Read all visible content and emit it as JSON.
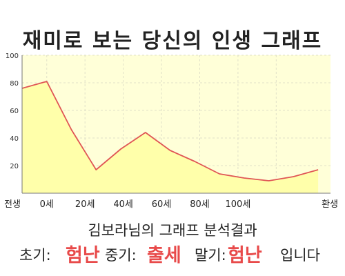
{
  "page": {
    "title": "재미로 보는 당신의 인생 그래프",
    "summary_title": "김보라님의 그래프 분석결과",
    "result": {
      "early_label": "초기:",
      "early_value": "험난",
      "middle_label": "중기:",
      "middle_value": "출세",
      "late_label": "말기:",
      "late_value": "험난",
      "suffix": "입니다"
    }
  },
  "colors": {
    "plot_bg": "#ffffd8",
    "area_fill": "#ffffaa",
    "line": "#e05555",
    "grid": "#e0e0c8",
    "result_value": "#e84a4a"
  },
  "chart_data": {
    "type": "area",
    "title": "",
    "xlabel": "",
    "ylabel": "",
    "x": [
      0,
      1,
      2,
      3,
      4,
      5,
      6,
      7,
      8,
      9,
      10,
      11,
      12
    ],
    "values": [
      76,
      81,
      46,
      17,
      32,
      44,
      31,
      23,
      14,
      11,
      9,
      12,
      17
    ],
    "ylim": [
      0,
      100
    ],
    "yticks": [
      20,
      40,
      60,
      80,
      100
    ],
    "xtick_labels": [
      "전생",
      "0세",
      "20세",
      "40세",
      "60세",
      "80세",
      "100세",
      "환생"
    ],
    "xtick_positions": [
      0,
      1,
      2.55,
      4.1,
      5.65,
      7.2,
      8.75,
      10.3
    ],
    "x_range": [
      0,
      12.5
    ],
    "grid": true
  }
}
